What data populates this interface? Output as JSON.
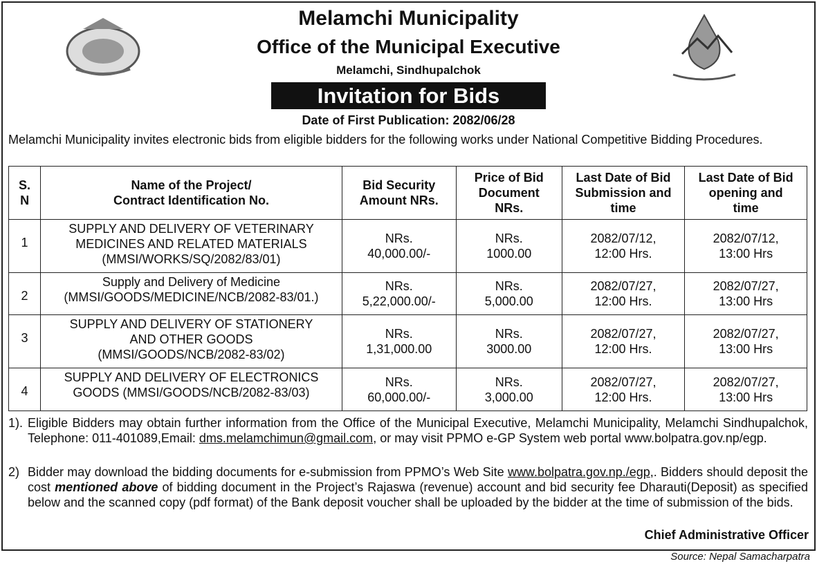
{
  "header": {
    "org": "Melamchi Municipality",
    "office": "Office of the Municipal Executive",
    "location": "Melamchi, Sindhupalchok",
    "banner": "Invitation for Bids",
    "publication": "Date of First Publication: 2082/06/28"
  },
  "intro": "Melamchi Municipality invites electronic bids from eligible bidders for the following works under National Competitive Bidding Procedures.",
  "table": {
    "columns": [
      "S.\nN",
      "Name of the Project/\nContract Identification No.",
      "Bid Security\nAmount NRs.",
      "Price of Bid\nDocument\nNRs.",
      "Last Date of Bid\nSubmission and\ntime",
      "Last Date of Bid\nopening and\ntime"
    ],
    "rows": [
      [
        "1",
        "SUPPLY AND DELIVERY OF VETERINARY\nMEDICINES AND RELATED MATERIALS\n(MMSI/WORKS/SQ/2082/83/01)",
        "NRs.\n40,000.00/-",
        "NRs.\n1000.00",
        "2082/07/12,\n12:00 Hrs.",
        "2082/07/12,\n13:00 Hrs"
      ],
      [
        "2",
        "Supply and Delivery of Medicine\n(MMSI/GOODS/MEDICINE/NCB/2082-83/01.)",
        "NRs.\n5,22,000.00/-",
        "NRs.\n5,000.00",
        "2082/07/27,\n12:00 Hrs.",
        "2082/07/27,\n13:00 Hrs"
      ],
      [
        "3",
        "SUPPLY AND DELIVERY OF STATIONERY\nAND OTHER GOODS\n(MMSI/GOODS/NCB/2082-83/02)",
        "NRs.\n1,31,000.00",
        "NRs.\n3000.00",
        "2082/07/27,\n12:00 Hrs.",
        "2082/07/27,\n13:00 Hrs"
      ],
      [
        "4",
        "SUPPLY AND DELIVERY OF ELECTRONICS\nGOODS (MMSI/GOODS/NCB/2082-83/03)",
        "NRs.\n60,000.00/-",
        "NRs.\n3,000.00",
        "2082/07/27,\n12:00 Hrs.",
        "2082/07/27,\n13:00 Hrs"
      ]
    ]
  },
  "notes": [
    {
      "number": "1).",
      "parts": [
        "Eligible Bidders may obtain further information from the Office of the Municipal Executive, Melamchi Municipality, Melamchi Sindhupalchok, Telephone: 011-401089,Email: ",
        "dms.melamchimun@gmail.com",
        ", or may visit PPMO e-GP System  web portal www.bolpatra.gov.np/egp."
      ]
    },
    {
      "number": "2)",
      "parts": [
        "Bidder may download the bidding documents for e-submission from PPMO’s Web Site ",
        "www.bolpatra.gov.np./egp",
        ",. Bidders should deposit the cost ",
        "mentioned above",
        " of bidding document in the Project’s Rajaswa (revenue)  account and bid security fee Dharauti(Deposit) as specified below and the scanned copy (pdf format) of the Bank deposit voucher shall be uploaded by the bidder at the time of  submission of the bids."
      ]
    }
  ],
  "signature": "Chief Administrative Officer",
  "source": "Source: Nepal Samacharpatra"
}
